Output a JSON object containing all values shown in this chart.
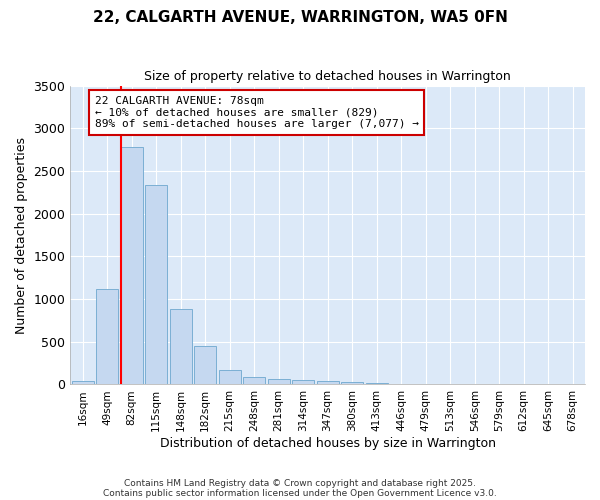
{
  "title1": "22, CALGARTH AVENUE, WARRINGTON, WA5 0FN",
  "title2": "Size of property relative to detached houses in Warrington",
  "xlabel": "Distribution of detached houses by size in Warrington",
  "ylabel": "Number of detached properties",
  "categories": [
    "16sqm",
    "49sqm",
    "82sqm",
    "115sqm",
    "148sqm",
    "182sqm",
    "215sqm",
    "248sqm",
    "281sqm",
    "314sqm",
    "347sqm",
    "380sqm",
    "413sqm",
    "446sqm",
    "479sqm",
    "513sqm",
    "546sqm",
    "579sqm",
    "612sqm",
    "645sqm",
    "678sqm"
  ],
  "values": [
    40,
    1120,
    2780,
    2340,
    880,
    450,
    175,
    90,
    60,
    50,
    35,
    25,
    15,
    10,
    5,
    3,
    2,
    1,
    1,
    1,
    1
  ],
  "bar_color": "#c5d8f0",
  "bar_edge_color": "#7bafd4",
  "fig_background_color": "#ffffff",
  "plot_background_color": "#dce9f8",
  "grid_color": "#ffffff",
  "red_line_index": 2,
  "annotation_text": "22 CALGARTH AVENUE: 78sqm\n← 10% of detached houses are smaller (829)\n89% of semi-detached houses are larger (7,077) →",
  "annotation_box_color": "#ffffff",
  "annotation_border_color": "#cc0000",
  "ylim": [
    0,
    3500
  ],
  "yticks": [
    0,
    500,
    1000,
    1500,
    2000,
    2500,
    3000,
    3500
  ],
  "footer1": "Contains HM Land Registry data © Crown copyright and database right 2025.",
  "footer2": "Contains public sector information licensed under the Open Government Licence v3.0."
}
